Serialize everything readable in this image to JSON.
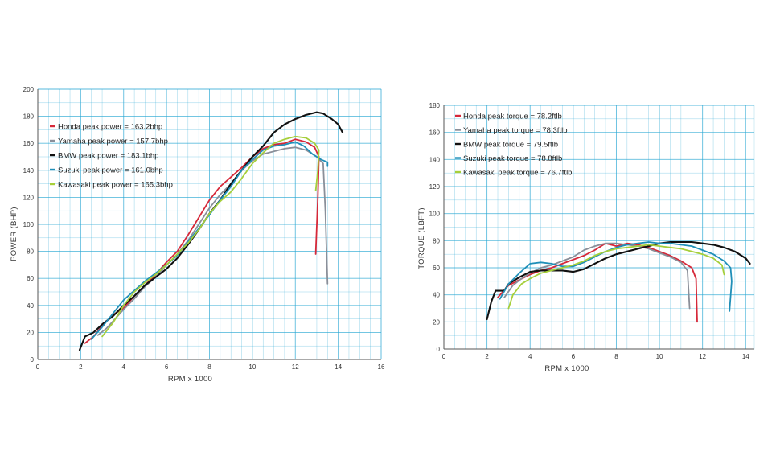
{
  "colors": {
    "honda": "#d62839",
    "yamaha": "#8a8f99",
    "bmw": "#111111",
    "suzuki": "#1f8fb8",
    "kawasaki": "#a6cf3a",
    "grid": "#2aa7d4"
  },
  "chart_data": [
    {
      "type": "line",
      "xlabel": "RPM x 1000",
      "ylabel": "POWER (BHP)",
      "xlim": [
        0,
        16
      ],
      "ylim": [
        0,
        200
      ],
      "xticks": [
        "0",
        "2",
        "4",
        "6",
        "8",
        "10",
        "12",
        "14",
        "16"
      ],
      "yticks": [
        "0",
        "20",
        "40",
        "60",
        "80",
        "100",
        "120",
        "140",
        "160",
        "180",
        "200"
      ],
      "legend": "top-left",
      "grid": true,
      "series": [
        {
          "name": "Honda peak power = 163.2bhp",
          "color_key": "honda",
          "points": [
            [
              2.2,
              12
            ],
            [
              2.6,
              17
            ],
            [
              3,
              25
            ],
            [
              3.5,
              33
            ],
            [
              4,
              38
            ],
            [
              4.5,
              47
            ],
            [
              5,
              55
            ],
            [
              5.5,
              63
            ],
            [
              6,
              72
            ],
            [
              6.5,
              80
            ],
            [
              7,
              92
            ],
            [
              7.5,
              105
            ],
            [
              8,
              118
            ],
            [
              8.5,
              128
            ],
            [
              9,
              135
            ],
            [
              9.5,
              142
            ],
            [
              10,
              150
            ],
            [
              10.5,
              156
            ],
            [
              11,
              159
            ],
            [
              11.5,
              160
            ],
            [
              12,
              163
            ],
            [
              12.5,
              161
            ],
            [
              12.9,
              157
            ],
            [
              13.1,
              150
            ],
            [
              13.05,
              120
            ],
            [
              12.95,
              78
            ]
          ]
        },
        {
          "name": "Yamaha peak power = 157.7bhp",
          "color_key": "yamaha",
          "points": [
            [
              2.8,
              18
            ],
            [
              3.2,
              23
            ],
            [
              3.6,
              30
            ],
            [
              4,
              37
            ],
            [
              4.5,
              45
            ],
            [
              5,
              54
            ],
            [
              5.5,
              61
            ],
            [
              6,
              70
            ],
            [
              6.5,
              78
            ],
            [
              7,
              88
            ],
            [
              7.5,
              100
            ],
            [
              8,
              112
            ],
            [
              8.5,
              122
            ],
            [
              9,
              130
            ],
            [
              9.5,
              140
            ],
            [
              10,
              147
            ],
            [
              10.5,
              152
            ],
            [
              11,
              154
            ],
            [
              11.5,
              156
            ],
            [
              12,
              157
            ],
            [
              12.5,
              155
            ],
            [
              13,
              150
            ],
            [
              13.3,
              145
            ],
            [
              13.4,
              110
            ],
            [
              13.5,
              56
            ]
          ]
        },
        {
          "name": "BMW peak power = 183.1bhp",
          "color_key": "bmw",
          "points": [
            [
              1.95,
              7
            ],
            [
              2.2,
              17
            ],
            [
              2.6,
              20
            ],
            [
              3,
              26
            ],
            [
              3.5,
              32
            ],
            [
              4,
              40
            ],
            [
              4.5,
              47
            ],
            [
              5,
              55
            ],
            [
              5.5,
              61
            ],
            [
              6,
              67
            ],
            [
              6.5,
              75
            ],
            [
              7,
              85
            ],
            [
              7.5,
              96
            ],
            [
              8,
              108
            ],
            [
              8.5,
              118
            ],
            [
              9,
              130
            ],
            [
              9.5,
              140
            ],
            [
              10,
              150
            ],
            [
              10.5,
              158
            ],
            [
              11,
              168
            ],
            [
              11.5,
              174
            ],
            [
              12,
              178
            ],
            [
              12.5,
              181
            ],
            [
              13,
              183
            ],
            [
              13.3,
              182
            ],
            [
              13.7,
              178
            ],
            [
              14,
              174
            ],
            [
              14.2,
              168
            ]
          ]
        },
        {
          "name": "Suzuki peak power = 161.0bhp",
          "color_key": "suzuki",
          "points": [
            [
              2.5,
              15
            ],
            [
              3,
              24
            ],
            [
              3.5,
              34
            ],
            [
              4,
              44
            ],
            [
              4.5,
              51
            ],
            [
              5,
              58
            ],
            [
              5.5,
              64
            ],
            [
              6,
              70
            ],
            [
              6.5,
              77
            ],
            [
              7,
              87
            ],
            [
              7.5,
              97
            ],
            [
              8,
              107
            ],
            [
              8.5,
              118
            ],
            [
              9,
              128
            ],
            [
              9.5,
              140
            ],
            [
              10,
              148
            ],
            [
              10.5,
              155
            ],
            [
              11,
              158
            ],
            [
              11.5,
              159
            ],
            [
              12,
              161
            ],
            [
              12.4,
              158
            ],
            [
              12.8,
              152
            ],
            [
              13.2,
              148
            ],
            [
              13.5,
              146
            ],
            [
              13.5,
              143
            ]
          ]
        },
        {
          "name": "Kawasaki peak power = 165.3bhp",
          "color_key": "kawasaki",
          "points": [
            [
              3,
              17
            ],
            [
              3.5,
              27
            ],
            [
              4,
              40
            ],
            [
              4.5,
              50
            ],
            [
              5,
              57
            ],
            [
              5.5,
              63
            ],
            [
              6,
              70
            ],
            [
              6.5,
              78
            ],
            [
              7,
              86
            ],
            [
              7.5,
              96
            ],
            [
              8,
              108
            ],
            [
              8.5,
              117
            ],
            [
              9,
              124
            ],
            [
              9.5,
              134
            ],
            [
              10,
              145
            ],
            [
              10.5,
              153
            ],
            [
              11,
              160
            ],
            [
              11.5,
              163
            ],
            [
              12,
              165
            ],
            [
              12.5,
              164
            ],
            [
              12.9,
              160
            ],
            [
              13.1,
              155
            ],
            [
              13.05,
              140
            ],
            [
              12.95,
              125
            ]
          ]
        }
      ]
    },
    {
      "type": "line",
      "xlabel": "RPM x 1000",
      "ylabel": "TORQUE (LBFT)",
      "xlim": [
        0,
        14.4
      ],
      "ylim": [
        0,
        180
      ],
      "xticks": [
        "0",
        "2",
        "4",
        "6",
        "8",
        "10",
        "12",
        "14"
      ],
      "yticks": [
        "0",
        "20",
        "40",
        "60",
        "80",
        "100",
        "120",
        "140",
        "160",
        "180"
      ],
      "legend": "top-left",
      "grid": true,
      "series": [
        {
          "name": "Honda peak torque = 78.2ftlb",
          "color_key": "honda",
          "points": [
            [
              2.5,
              38
            ],
            [
              3,
              47
            ],
            [
              3.5,
              51
            ],
            [
              4,
              55
            ],
            [
              4.5,
              58
            ],
            [
              5,
              60
            ],
            [
              5.5,
              63
            ],
            [
              6,
              66
            ],
            [
              6.5,
              69
            ],
            [
              7,
              73
            ],
            [
              7.5,
              78
            ],
            [
              8,
              76
            ],
            [
              8.5,
              78
            ],
            [
              9,
              77
            ],
            [
              9.5,
              75
            ],
            [
              10,
              72
            ],
            [
              10.5,
              69
            ],
            [
              11,
              65
            ],
            [
              11.5,
              60
            ],
            [
              11.7,
              52
            ],
            [
              11.75,
              20
            ]
          ]
        },
        {
          "name": "Yamaha peak torque = 78.3ftlb",
          "color_key": "yamaha",
          "points": [
            [
              2.8,
              38
            ],
            [
              3.2,
              47
            ],
            [
              3.6,
              52
            ],
            [
              4,
              56
            ],
            [
              4.5,
              60
            ],
            [
              5,
              62
            ],
            [
              5.5,
              65
            ],
            [
              6,
              68
            ],
            [
              6.5,
              73
            ],
            [
              7,
              76
            ],
            [
              7.5,
              78
            ],
            [
              8,
              78
            ],
            [
              8.5,
              77
            ],
            [
              9,
              76
            ],
            [
              9.5,
              74
            ],
            [
              10,
              71
            ],
            [
              10.5,
              68
            ],
            [
              11,
              64
            ],
            [
              11.3,
              58
            ],
            [
              11.4,
              30
            ]
          ]
        },
        {
          "name": "BMW peak torque = 79.5ftlb",
          "color_key": "bmw",
          "points": [
            [
              2,
              22
            ],
            [
              2.2,
              35
            ],
            [
              2.4,
              43
            ],
            [
              2.8,
              43
            ],
            [
              3,
              48
            ],
            [
              3.5,
              53
            ],
            [
              4,
              57
            ],
            [
              4.5,
              58
            ],
            [
              5,
              58
            ],
            [
              5.5,
              58
            ],
            [
              6,
              57
            ],
            [
              6.5,
              59
            ],
            [
              7,
              63
            ],
            [
              7.5,
              67
            ],
            [
              8,
              70
            ],
            [
              8.5,
              72
            ],
            [
              9,
              74
            ],
            [
              9.5,
              76
            ],
            [
              10,
              78
            ],
            [
              10.5,
              79
            ],
            [
              11,
              79
            ],
            [
              11.5,
              79
            ],
            [
              12,
              78
            ],
            [
              12.5,
              77
            ],
            [
              13,
              75
            ],
            [
              13.5,
              72
            ],
            [
              14,
              67
            ],
            [
              14.2,
              63
            ]
          ]
        },
        {
          "name": "Suzuki peak torque = 78.8ftlb",
          "color_key": "suzuki",
          "points": [
            [
              2.6,
              37
            ],
            [
              3,
              48
            ],
            [
              3.5,
              56
            ],
            [
              4,
              63
            ],
            [
              4.5,
              64
            ],
            [
              5,
              63
            ],
            [
              5.5,
              61
            ],
            [
              6,
              61
            ],
            [
              6.5,
              64
            ],
            [
              7,
              68
            ],
            [
              7.5,
              72
            ],
            [
              8,
              75
            ],
            [
              8.5,
              77
            ],
            [
              9,
              78
            ],
            [
              9.5,
              79
            ],
            [
              10,
              78
            ],
            [
              10.5,
              78
            ],
            [
              11,
              77
            ],
            [
              11.5,
              76
            ],
            [
              12,
              73
            ],
            [
              12.5,
              70
            ],
            [
              13,
              65
            ],
            [
              13.3,
              60
            ],
            [
              13.35,
              50
            ],
            [
              13.25,
              28
            ]
          ]
        },
        {
          "name": "Kawasaki peak torque = 76.7ftlb",
          "color_key": "kawasaki",
          "points": [
            [
              3,
              30
            ],
            [
              3.2,
              40
            ],
            [
              3.6,
              48
            ],
            [
              4,
              52
            ],
            [
              4.5,
              56
            ],
            [
              5,
              58
            ],
            [
              5.5,
              60
            ],
            [
              6,
              62
            ],
            [
              6.5,
              65
            ],
            [
              7,
              69
            ],
            [
              7.5,
              72
            ],
            [
              8,
              74
            ],
            [
              8.5,
              75
            ],
            [
              9,
              76
            ],
            [
              9.5,
              77
            ],
            [
              10,
              76
            ],
            [
              10.5,
              75
            ],
            [
              11,
              74
            ],
            [
              11.5,
              72
            ],
            [
              12,
              70
            ],
            [
              12.5,
              67
            ],
            [
              12.9,
              62
            ],
            [
              13,
              55
            ]
          ]
        }
      ]
    }
  ]
}
